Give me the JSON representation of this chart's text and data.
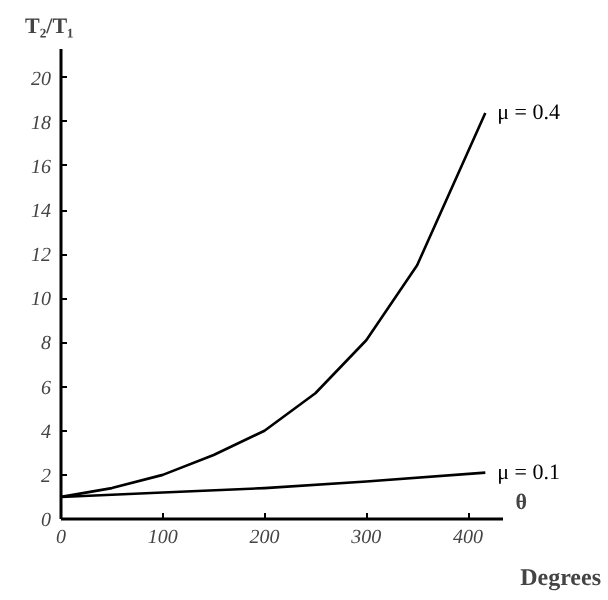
{
  "chart_data": {
    "type": "line",
    "ylabel": "T₂/T₁",
    "xlabel": "θ",
    "annotations": [
      "Degrees"
    ],
    "series": [
      {
        "name": "μ = 0.4",
        "color": "#000000",
        "x": [
          0,
          50,
          100,
          150,
          200,
          250,
          300,
          350,
          417
        ],
        "values": [
          1,
          1.4,
          2.0,
          2.9,
          4.0,
          5.7,
          8.1,
          11.5,
          18.4
        ]
      },
      {
        "name": "μ = 0.1",
        "color": "#000000",
        "x": [
          0,
          100,
          200,
          300,
          417
        ],
        "values": [
          1,
          1.2,
          1.4,
          1.7,
          2.1
        ]
      }
    ],
    "xlim": [
      0,
      435
    ],
    "ylim": [
      0,
      21.3
    ],
    "xticks": [
      0,
      100,
      200,
      300,
      400
    ],
    "yticks": [
      0,
      2,
      4,
      6,
      8,
      10,
      12,
      14,
      16,
      18,
      20
    ],
    "grid": false,
    "legend": false,
    "marker": "none",
    "line_style": "solid"
  }
}
